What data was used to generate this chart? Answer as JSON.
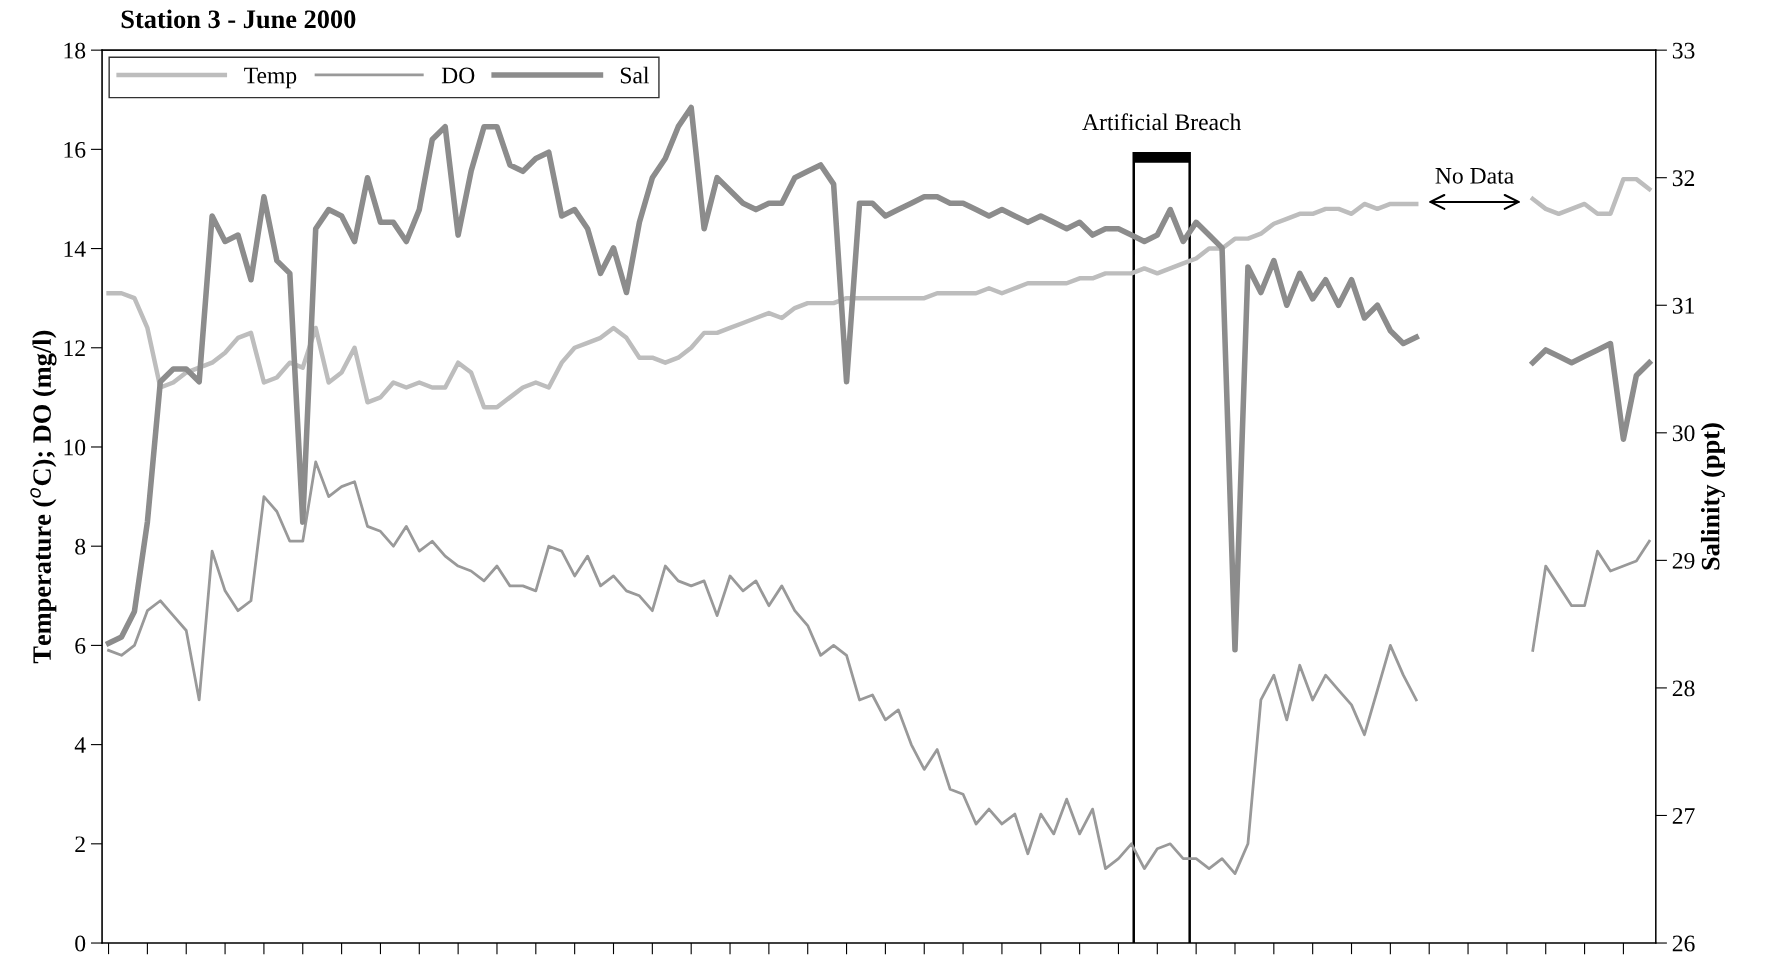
{
  "chart_data": {
    "type": "line",
    "title": "Station 3 - June 2000",
    "ylabel": "Temperature ($^{o}$C); DO (mg/l)",
    "y2label": "Salinity (ppt)",
    "categories": [
      null,
      null,
      null,
      null,
      null,
      null,
      null,
      null,
      null,
      null,
      null,
      null,
      null,
      null,
      null,
      null,
      null,
      null,
      null,
      null,
      null,
      null,
      null,
      null,
      null,
      null,
      null,
      null,
      null,
      null,
      null,
      null,
      null,
      null,
      null,
      null,
      null,
      null,
      null,
      null,
      null,
      null,
      null,
      null,
      null,
      null,
      null,
      null,
      null,
      null,
      null,
      null,
      null,
      null,
      null,
      null,
      null,
      null,
      null,
      null,
      null,
      null,
      null,
      null,
      null,
      null,
      null,
      null,
      null,
      null,
      null,
      null,
      null,
      null,
      null,
      null,
      null,
      null,
      null,
      null,
      null,
      null,
      null,
      null,
      null,
      null,
      null,
      null,
      null,
      null,
      null,
      null,
      null,
      null,
      null,
      null,
      null,
      null,
      null,
      null,
      null,
      null,
      null,
      null,
      null,
      null,
      null,
      null,
      null,
      null,
      null,
      null,
      null,
      null,
      null,
      null,
      null,
      null,
      null,
      null
    ],
    "series": [
      {
        "name": "Temp",
        "color": "#bdbdbd",
        "values": [
          13.1,
          13.1,
          13.0,
          12.4,
          11.2,
          11.3,
          11.5,
          11.6,
          11.7,
          11.9,
          12.2,
          12.3,
          11.3,
          11.4,
          11.7,
          11.6,
          12.4,
          11.3,
          11.5,
          12.0,
          10.9,
          11.0,
          11.3,
          11.2,
          11.3,
          11.2,
          11.2,
          11.7,
          11.5,
          10.8,
          10.8,
          11.0,
          11.2,
          11.3,
          11.2,
          11.7,
          12.0,
          12.1,
          12.2,
          12.4,
          12.2,
          11.8,
          11.8,
          11.7,
          11.8,
          12.0,
          12.3,
          12.3,
          12.4,
          12.5,
          12.6,
          12.7,
          12.6,
          12.8,
          12.9,
          12.9,
          12.9,
          13.0,
          13.0,
          13.0,
          13.0,
          13.0,
          13.0,
          13.0,
          13.1,
          13.1,
          13.1,
          13.1,
          13.2,
          13.1,
          13.2,
          13.3,
          13.3,
          13.3,
          13.3,
          13.4,
          13.4,
          13.5,
          13.5,
          13.5,
          13.6,
          13.5,
          13.6,
          13.7,
          13.8,
          14.0,
          14.0,
          14.2,
          14.2,
          14.3,
          14.5,
          14.6,
          14.7,
          14.7,
          14.8,
          14.8,
          14.7,
          14.9,
          14.8,
          14.9,
          14.9,
          14.9,
          null,
          null,
          null,
          null,
          null,
          null,
          null,
          null,
          null,
          null,
          null,
          null,
          null,
          null,
          null,
          null,
          null,
          null
        ]
      },
      {
        "name": "DO",
        "color": "#999999",
        "values": [
          5.9,
          5.8,
          6.0,
          6.7,
          6.9,
          6.6,
          6.3,
          4.9,
          7.9,
          7.1,
          6.7,
          6.9,
          9.0,
          8.7,
          8.1,
          8.1,
          9.7,
          9.0,
          9.2,
          9.3,
          8.4,
          8.3,
          8.0,
          8.4,
          7.9,
          8.1,
          7.8,
          7.6,
          7.5,
          7.3,
          7.6,
          7.2,
          7.2,
          7.1,
          8.0,
          7.9,
          7.4,
          7.8,
          7.2,
          7.4,
          7.1,
          7.0,
          6.7,
          7.6,
          7.3,
          7.2,
          7.3,
          6.6,
          7.4,
          7.1,
          7.3,
          6.8,
          7.2,
          6.7,
          6.4,
          5.8,
          6.0,
          5.8,
          4.9,
          5.0,
          4.5,
          4.7,
          4.0,
          3.5,
          3.9,
          3.1,
          3.0,
          2.4,
          2.7,
          2.4,
          2.6,
          1.8,
          2.6,
          2.2,
          2.9,
          2.2,
          2.7,
          1.5,
          1.7,
          2.0,
          1.5,
          1.9,
          2.0,
          1.7,
          1.7,
          1.5,
          1.7,
          1.4,
          2.0,
          4.9,
          5.4,
          4.5,
          5.6,
          4.9,
          5.4,
          5.1,
          4.8,
          4.2,
          5.1,
          6.0,
          5.4,
          4.9,
          null,
          null,
          null,
          null,
          null,
          null,
          null,
          null,
          null,
          null,
          null,
          null,
          null,
          null,
          null,
          null,
          null,
          null
        ]
      },
      {
        "name": "Sal",
        "color": "#8c8c8c",
        "axis": "y2",
        "values": [
          28.35,
          28.4,
          28.6,
          29.3,
          30.4,
          30.5,
          30.5,
          30.4,
          31.7,
          31.5,
          31.55,
          31.2,
          31.85,
          31.35,
          31.25,
          29.3,
          31.6,
          31.75,
          31.7,
          31.5,
          32.0,
          31.65,
          31.65,
          31.5,
          31.75,
          32.3,
          32.4,
          31.55,
          32.05,
          32.4,
          32.4,
          32.1,
          32.05,
          32.15,
          32.2,
          31.7,
          31.75,
          31.6,
          31.25,
          31.45,
          31.1,
          31.65,
          32.0,
          32.15,
          32.4,
          32.55,
          31.6,
          32.0,
          31.9,
          31.8,
          31.75,
          31.8,
          31.8,
          32.0,
          32.05,
          32.1,
          31.95,
          30.4,
          31.8,
          31.8,
          31.7,
          31.75,
          31.8,
          31.85,
          31.85,
          31.8,
          31.8,
          31.75,
          31.7,
          31.75,
          31.7,
          31.65,
          31.7,
          31.65,
          31.6,
          31.65,
          31.55,
          31.6,
          31.6,
          31.55,
          31.5,
          31.55,
          31.75,
          31.5,
          31.65,
          31.55,
          31.45,
          28.3,
          31.3,
          31.1,
          31.35,
          31.0,
          31.25,
          31.05,
          31.2,
          31.0,
          31.2,
          30.9,
          31.0,
          30.8,
          30.7,
          30.75,
          null,
          null,
          null,
          null,
          null,
          null,
          null,
          null,
          null,
          null,
          null,
          null,
          null,
          null,
          null,
          null,
          null,
          null
        ]
      },
      {
        "color": "#bdbdbd",
        "values": [
          null,
          null,
          null,
          null,
          null,
          null,
          null,
          null,
          null,
          null,
          null,
          null,
          null,
          null,
          null,
          null,
          null,
          null,
          null,
          null,
          null,
          null,
          null,
          null,
          null,
          null,
          null,
          null,
          null,
          null,
          null,
          null,
          null,
          null,
          null,
          null,
          null,
          null,
          null,
          null,
          null,
          null,
          null,
          null,
          null,
          null,
          null,
          null,
          null,
          null,
          null,
          null,
          null,
          null,
          null,
          null,
          null,
          null,
          null,
          null,
          null,
          null,
          null,
          null,
          null,
          null,
          null,
          null,
          null,
          null,
          null,
          null,
          null,
          null,
          null,
          null,
          null,
          null,
          null,
          null,
          null,
          null,
          null,
          null,
          null,
          null,
          null,
          null,
          null,
          null,
          null,
          null,
          null,
          null,
          null,
          null,
          null,
          null,
          null,
          null,
          null,
          null,
          null,
          null,
          null,
          null,
          null,
          null,
          null,
          null,
          15.0,
          14.8,
          14.7,
          14.8,
          14.9,
          14.7,
          14.7,
          15.4,
          15.4,
          15.2
        ]
      },
      {
        "color": "#999999",
        "values": [
          null,
          null,
          null,
          null,
          null,
          null,
          null,
          null,
          null,
          null,
          null,
          null,
          null,
          null,
          null,
          null,
          null,
          null,
          null,
          null,
          null,
          null,
          null,
          null,
          null,
          null,
          null,
          null,
          null,
          null,
          null,
          null,
          null,
          null,
          null,
          null,
          null,
          null,
          null,
          null,
          null,
          null,
          null,
          null,
          null,
          null,
          null,
          null,
          null,
          null,
          null,
          null,
          null,
          null,
          null,
          null,
          null,
          null,
          null,
          null,
          null,
          null,
          null,
          null,
          null,
          null,
          null,
          null,
          null,
          null,
          null,
          null,
          null,
          null,
          null,
          null,
          null,
          null,
          null,
          null,
          null,
          null,
          null,
          null,
          null,
          null,
          null,
          null,
          null,
          null,
          null,
          null,
          null,
          null,
          null,
          null,
          null,
          null,
          null,
          null,
          null,
          null,
          null,
          null,
          null,
          null,
          null,
          null,
          null,
          null,
          5.9,
          7.6,
          7.2,
          6.8,
          6.8,
          7.9,
          7.5,
          7.6,
          7.7,
          8.1
        ]
      },
      {
        "color": "#8c8c8c",
        "axis": "y2",
        "values": [
          null,
          null,
          null,
          null,
          null,
          null,
          null,
          null,
          null,
          null,
          null,
          null,
          null,
          null,
          null,
          null,
          null,
          null,
          null,
          null,
          null,
          null,
          null,
          null,
          null,
          null,
          null,
          null,
          null,
          null,
          null,
          null,
          null,
          null,
          null,
          null,
          null,
          null,
          null,
          null,
          null,
          null,
          null,
          null,
          null,
          null,
          null,
          null,
          null,
          null,
          null,
          null,
          null,
          null,
          null,
          null,
          null,
          null,
          null,
          null,
          null,
          null,
          null,
          null,
          null,
          null,
          null,
          null,
          null,
          null,
          null,
          null,
          null,
          null,
          null,
          null,
          null,
          null,
          null,
          null,
          null,
          null,
          null,
          null,
          null,
          null,
          null,
          null,
          null,
          null,
          null,
          null,
          null,
          null,
          null,
          null,
          null,
          null,
          null,
          null,
          null,
          null,
          null,
          null,
          null,
          null,
          null,
          null,
          null,
          null,
          30.55,
          30.65,
          30.6,
          30.55,
          30.6,
          30.65,
          30.7,
          29.95,
          30.45,
          30.55
        ]
      }
    ],
    "ylim": [
      0,
      18
    ],
    "yticks": [
      0,
      2,
      4,
      6,
      8,
      10,
      12,
      14,
      16,
      18
    ],
    "y2lim": [
      26,
      33
    ],
    "y2ticks": [
      26,
      27,
      28,
      29,
      30,
      31,
      32,
      33
    ],
    "annotations": [
      "Artificial Breach",
      "No Data"
    ],
    "tick_labels": "y",
    "legend": "top left",
    "grid": false,
    "marker": "none",
    "line_style": "solid"
  }
}
